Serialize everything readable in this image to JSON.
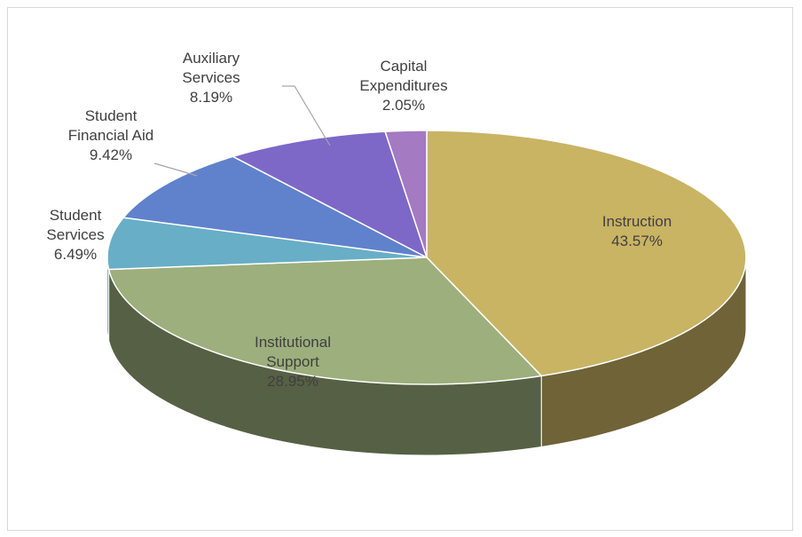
{
  "chart_data": {
    "type": "pie3d",
    "categories": [
      "Instruction",
      "Institutional Support",
      "Student Services",
      "Student Financial Aid",
      "Auxiliary Services",
      "Capital Expenditures"
    ],
    "values": [
      43.57,
      28.95,
      6.49,
      9.42,
      8.19,
      2.05
    ],
    "value_labels": [
      "43.57%",
      "28.95%",
      "6.49%",
      "9.42%",
      "8.19%",
      "2.05%"
    ],
    "colors": [
      "#c9b464",
      "#9caf7c",
      "#68aec6",
      "#6082cc",
      "#7d68c8",
      "#a47ac2"
    ]
  }
}
